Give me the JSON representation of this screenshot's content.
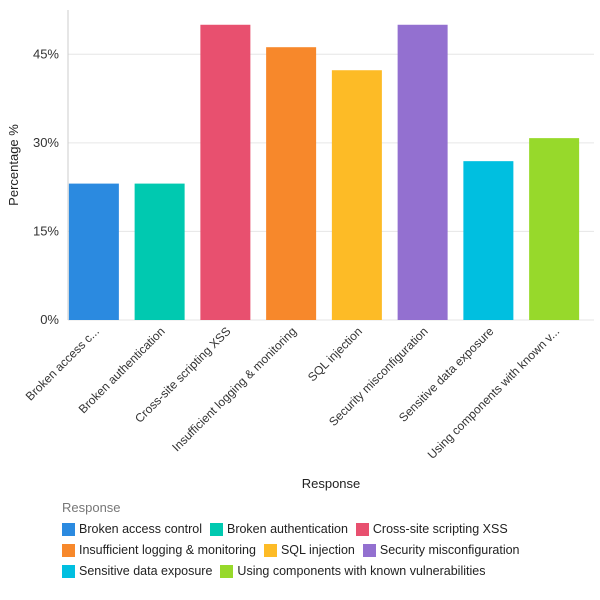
{
  "chart_data": {
    "type": "bar",
    "xlabel": "Response",
    "ylabel": "Percentage %",
    "ylim": [
      0,
      52.5
    ],
    "yticks": [
      0,
      15,
      30,
      45
    ],
    "ytick_labels": [
      "0%",
      "15%",
      "30%",
      "45%"
    ],
    "grid": true,
    "categories": [
      "Broken access control",
      "Broken authentication",
      "Cross-site scripting XSS",
      "Insufficient logging & monitoring",
      "SQL injection",
      "Security misconfiguration",
      "Sensitive data exposure",
      "Using components with known vulnerabilities"
    ],
    "tick_labels": [
      "Broken access c...",
      "Broken authentication",
      "Cross-site scripting XSS",
      "Insufficient logging & monitoring",
      "SQL injection",
      "Security misconfiguration",
      "Sensitive data exposure",
      "Using components with known v..."
    ],
    "values": [
      23.1,
      23.1,
      50.0,
      46.2,
      42.3,
      50.0,
      26.9,
      30.8
    ],
    "colors": [
      "#2b8ae0",
      "#00c9b0",
      "#e8506f",
      "#f7882b",
      "#fdbb26",
      "#9370d0",
      "#00bfe0",
      "#97d92b"
    ],
    "legend_title": "Response",
    "legend_position": "bottom"
  }
}
